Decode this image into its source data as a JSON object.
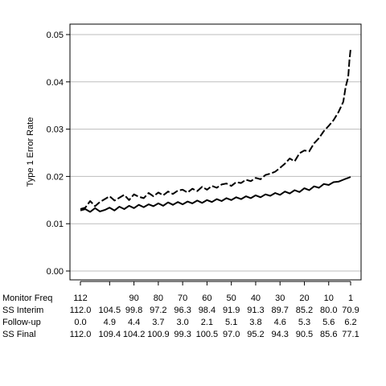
{
  "chart_data": {
    "type": "line",
    "title": "",
    "xlabel": "",
    "ylabel": "Type 1 Error Rate",
    "ylim": [
      0,
      0.05
    ],
    "yticks": [
      "0.00",
      "0.01",
      "0.02",
      "0.03",
      "0.04",
      "0.05"
    ],
    "grid": "horizontal",
    "legend": "none",
    "x_axis": {
      "range": [
        112,
        1
      ],
      "direction": "reversed",
      "tick_values": [
        112,
        100,
        90,
        80,
        70,
        60,
        50,
        40,
        30,
        20,
        10,
        1
      ]
    },
    "table_rows": [
      {
        "label": "Monitor Freq",
        "values": [
          "112",
          "",
          "90",
          "80",
          "70",
          "60",
          "50",
          "40",
          "30",
          "20",
          "10",
          "1"
        ]
      },
      {
        "label": "SS Interim",
        "values": [
          "112.0",
          "104.5",
          "99.8",
          "97.2",
          "96.3",
          "98.4",
          "91.9",
          "91.3",
          "89.7",
          "85.2",
          "80.0",
          "70.9"
        ]
      },
      {
        "label": "Follow-up",
        "values": [
          "0.0",
          "4.9",
          "4.4",
          "3.7",
          "3.0",
          "2.1",
          "5.1",
          "3.8",
          "4.6",
          "5.3",
          "5.6",
          "6.2"
        ]
      },
      {
        "label": "SS Final",
        "values": [
          "112.0",
          "109.4",
          "104.2",
          "100.9",
          "99.3",
          "100.5",
          "97.0",
          "95.2",
          "94.3",
          "90.5",
          "85.6",
          "77.1"
        ]
      }
    ],
    "series": [
      {
        "style": "dashed",
        "points": [
          [
            112,
            0.0131
          ],
          [
            110,
            0.0134
          ],
          [
            108,
            0.0148
          ],
          [
            106,
            0.0137
          ],
          [
            104,
            0.0146
          ],
          [
            102,
            0.0152
          ],
          [
            100,
            0.0158
          ],
          [
            98,
            0.0149
          ],
          [
            96,
            0.0155
          ],
          [
            94,
            0.0161
          ],
          [
            92,
            0.015
          ],
          [
            90,
            0.0162
          ],
          [
            88,
            0.0157
          ],
          [
            86,
            0.0154
          ],
          [
            84,
            0.0165
          ],
          [
            82,
            0.0158
          ],
          [
            80,
            0.0166
          ],
          [
            78,
            0.016
          ],
          [
            76,
            0.0168
          ],
          [
            74,
            0.0163
          ],
          [
            72,
            0.017
          ],
          [
            70,
            0.0172
          ],
          [
            68,
            0.0166
          ],
          [
            66,
            0.0174
          ],
          [
            64,
            0.0169
          ],
          [
            62,
            0.0178
          ],
          [
            60,
            0.0172
          ],
          [
            58,
            0.018
          ],
          [
            56,
            0.0176
          ],
          [
            54,
            0.0183
          ],
          [
            52,
            0.0185
          ],
          [
            50,
            0.018
          ],
          [
            48,
            0.0188
          ],
          [
            46,
            0.0186
          ],
          [
            44,
            0.0193
          ],
          [
            42,
            0.019
          ],
          [
            40,
            0.0197
          ],
          [
            38,
            0.0194
          ],
          [
            36,
            0.0203
          ],
          [
            34,
            0.0206
          ],
          [
            32,
            0.021
          ],
          [
            30,
            0.0218
          ],
          [
            28,
            0.0227
          ],
          [
            26,
            0.0238
          ],
          [
            24,
            0.0232
          ],
          [
            22,
            0.0249
          ],
          [
            20,
            0.0255
          ],
          [
            18,
            0.0253
          ],
          [
            16,
            0.027
          ],
          [
            14,
            0.0281
          ],
          [
            12,
            0.0296
          ],
          [
            10,
            0.0307
          ],
          [
            8,
            0.0319
          ],
          [
            6,
            0.0336
          ],
          [
            4,
            0.0358
          ],
          [
            3,
            0.039
          ],
          [
            2,
            0.041
          ],
          [
            1.5,
            0.0445
          ],
          [
            1,
            0.047
          ]
        ]
      },
      {
        "style": "solid",
        "points": [
          [
            112,
            0.0128
          ],
          [
            110,
            0.0131
          ],
          [
            108,
            0.0125
          ],
          [
            106,
            0.0133
          ],
          [
            104,
            0.0126
          ],
          [
            102,
            0.0129
          ],
          [
            100,
            0.0134
          ],
          [
            98,
            0.0128
          ],
          [
            96,
            0.0136
          ],
          [
            94,
            0.0131
          ],
          [
            92,
            0.0138
          ],
          [
            90,
            0.0133
          ],
          [
            88,
            0.014
          ],
          [
            86,
            0.0135
          ],
          [
            84,
            0.0141
          ],
          [
            82,
            0.0137
          ],
          [
            80,
            0.0143
          ],
          [
            78,
            0.0138
          ],
          [
            76,
            0.0145
          ],
          [
            74,
            0.014
          ],
          [
            72,
            0.0146
          ],
          [
            70,
            0.0141
          ],
          [
            68,
            0.0147
          ],
          [
            66,
            0.0143
          ],
          [
            64,
            0.0149
          ],
          [
            62,
            0.0144
          ],
          [
            60,
            0.015
          ],
          [
            58,
            0.0146
          ],
          [
            56,
            0.0152
          ],
          [
            54,
            0.0148
          ],
          [
            52,
            0.0154
          ],
          [
            50,
            0.015
          ],
          [
            48,
            0.0156
          ],
          [
            46,
            0.0152
          ],
          [
            44,
            0.0158
          ],
          [
            42,
            0.0154
          ],
          [
            40,
            0.016
          ],
          [
            38,
            0.0156
          ],
          [
            36,
            0.0162
          ],
          [
            34,
            0.0159
          ],
          [
            32,
            0.0165
          ],
          [
            30,
            0.0161
          ],
          [
            28,
            0.0168
          ],
          [
            26,
            0.0164
          ],
          [
            24,
            0.0171
          ],
          [
            22,
            0.0167
          ],
          [
            20,
            0.0175
          ],
          [
            18,
            0.0171
          ],
          [
            16,
            0.0179
          ],
          [
            14,
            0.0176
          ],
          [
            12,
            0.0184
          ],
          [
            10,
            0.0182
          ],
          [
            8,
            0.0188
          ],
          [
            6,
            0.0189
          ],
          [
            4,
            0.0193
          ],
          [
            3,
            0.0195
          ],
          [
            2,
            0.0197
          ],
          [
            1,
            0.0199
          ]
        ]
      }
    ]
  }
}
